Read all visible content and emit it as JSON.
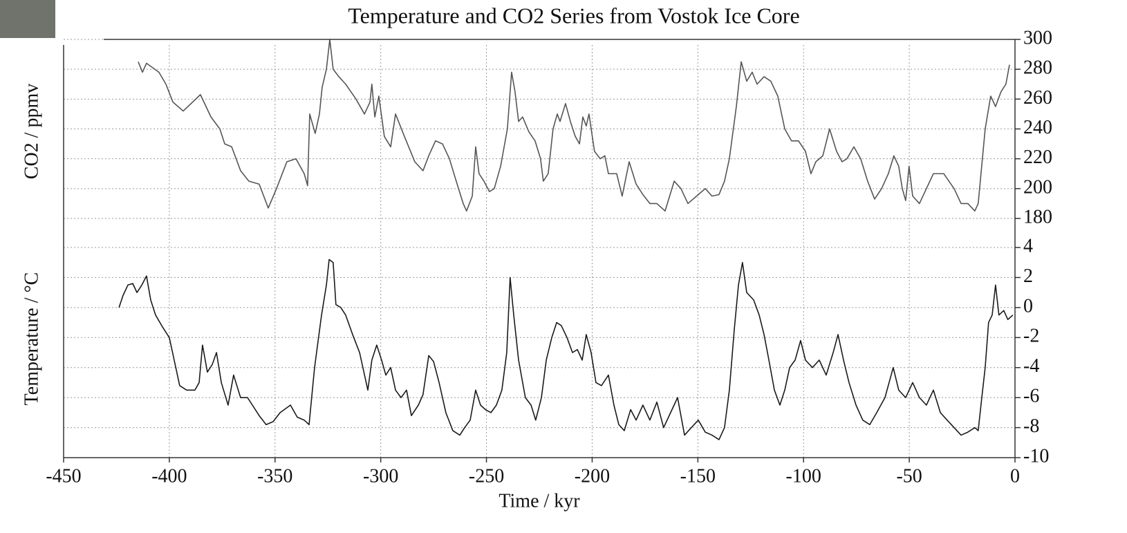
{
  "chart_data": [
    {
      "type": "line",
      "title": "Temperature and CO2 Series from Vostok Ice Core",
      "ylabel": "CO2 / ppmv",
      "color": "#555555",
      "xlim": [
        -450,
        0
      ],
      "ylim": [
        180,
        300
      ],
      "yticks": [
        180,
        200,
        220,
        240,
        260,
        280,
        300
      ],
      "grid": true,
      "x": [
        -414.7,
        -412.7,
        -410.8,
        -404.9,
        -401.6,
        -398.3,
        -393.4,
        -385.3,
        -380.3,
        -376.1,
        -373.8,
        -370.5,
        -366.3,
        -362.4,
        -357.5,
        -353.2,
        -349.3,
        -344.4,
        -340.1,
        -336.2,
        -334.6,
        -333.6,
        -331.0,
        -329.0,
        -327.7,
        -325.7,
        -324.1,
        -322.5,
        -319.8,
        -316.6,
        -311.7,
        -307.7,
        -305.1,
        -304.2,
        -302.8,
        -300.9,
        -298.3,
        -295.3,
        -293.0,
        -288.8,
        -283.9,
        -280.0,
        -277.3,
        -274.1,
        -270.8,
        -267.5,
        -264.3,
        -261.0,
        -259.4,
        -256.7,
        -255.1,
        -253.5,
        -251.2,
        -248.6,
        -246.3,
        -243.3,
        -240.1,
        -238.1,
        -236.5,
        -234.8,
        -232.9,
        -229.9,
        -227.0,
        -224.4,
        -223.1,
        -220.8,
        -218.5,
        -216.5,
        -215.2,
        -212.6,
        -210.3,
        -208.0,
        -206.0,
        -204.4,
        -202.8,
        -201.5,
        -198.9,
        -196.2,
        -194.0,
        -192.3,
        -190.0,
        -188.4,
        -185.8,
        -182.5,
        -179.2,
        -176.0,
        -172.7,
        -169.4,
        -165.5,
        -161.2,
        -158.0,
        -154.7,
        -149.8,
        -146.5,
        -143.3,
        -140.0,
        -137.4,
        -135.1,
        -131.8,
        -129.5,
        -126.9,
        -124.3,
        -122.0,
        -118.7,
        -115.5,
        -112.2,
        -108.9,
        -105.7,
        -102.4,
        -99.1,
        -96.5,
        -94.2,
        -90.9,
        -87.7,
        -84.4,
        -81.8,
        -79.5,
        -76.2,
        -73.0,
        -69.7,
        -66.4,
        -63.1,
        -59.9,
        -57.3,
        -55.0,
        -53.3,
        -51.7,
        -50.1,
        -48.4,
        -45.2,
        -41.9,
        -38.6,
        -33.7,
        -28.8,
        -25.5,
        -22.3,
        -19.0,
        -17.4,
        -14.1,
        -11.5,
        -9.2,
        -6.6,
        -4.3,
        -2.6
      ],
      "values": [
        285,
        278,
        284,
        278,
        270,
        258,
        252,
        263,
        248,
        240,
        230,
        228,
        212,
        205,
        203,
        187,
        200,
        218,
        220,
        210,
        202,
        250,
        237,
        250,
        268,
        280,
        300,
        280,
        275,
        270,
        260,
        250,
        258,
        270,
        248,
        262,
        235,
        228,
        250,
        235,
        218,
        212,
        222,
        232,
        230,
        220,
        205,
        190,
        185,
        195,
        228,
        210,
        205,
        198,
        200,
        215,
        240,
        278,
        265,
        245,
        248,
        238,
        232,
        220,
        205,
        210,
        240,
        250,
        245,
        257,
        245,
        235,
        230,
        248,
        242,
        250,
        225,
        220,
        222,
        210,
        210,
        210,
        195,
        218,
        203,
        196,
        190,
        190,
        185,
        205,
        200,
        190,
        196,
        200,
        195,
        196,
        205,
        220,
        255,
        285,
        272,
        278,
        270,
        275,
        272,
        262,
        240,
        232,
        232,
        225,
        210,
        218,
        222,
        240,
        225,
        218,
        220,
        228,
        220,
        205,
        193,
        200,
        210,
        222,
        215,
        200,
        192,
        215,
        195,
        190,
        200,
        210,
        210,
        200,
        190,
        190,
        185,
        190,
        240,
        262,
        255,
        265,
        270,
        283
      ]
    },
    {
      "type": "line",
      "xlabel": "Time / kyr",
      "ylabel": "Temperature / °C",
      "color": "#1a1a1a",
      "xlim": [
        -450,
        0
      ],
      "xticks": [
        -450,
        -400,
        -350,
        -300,
        -250,
        -200,
        -150,
        -100,
        -50,
        0
      ],
      "ylim": [
        -10,
        4
      ],
      "yticks": [
        -10,
        -8,
        -6,
        -4,
        -2,
        0,
        2,
        4
      ],
      "grid": true,
      "x": [
        -423.8,
        -421.9,
        -419.6,
        -417.3,
        -415.3,
        -413.0,
        -410.8,
        -408.8,
        -406.5,
        -403.2,
        -400.0,
        -397.7,
        -395.1,
        -391.8,
        -387.9,
        -385.9,
        -384.3,
        -382.0,
        -379.7,
        -377.7,
        -375.4,
        -372.2,
        -369.6,
        -366.3,
        -363.0,
        -360.7,
        -357.5,
        -354.2,
        -350.9,
        -347.6,
        -342.7,
        -339.5,
        -336.2,
        -333.9,
        -331.3,
        -328.0,
        -325.7,
        -324.4,
        -322.5,
        -321.2,
        -318.9,
        -316.6,
        -313.3,
        -310.0,
        -306.1,
        -304.2,
        -301.9,
        -299.6,
        -297.6,
        -295.3,
        -293.0,
        -290.4,
        -287.8,
        -285.5,
        -282.2,
        -280.0,
        -277.3,
        -275.0,
        -272.4,
        -269.2,
        -265.9,
        -262.6,
        -260.3,
        -257.7,
        -255.1,
        -252.8,
        -250.5,
        -247.9,
        -245.3,
        -242.7,
        -240.4,
        -238.8,
        -237.1,
        -234.8,
        -231.6,
        -228.9,
        -226.7,
        -224.0,
        -221.7,
        -219.1,
        -216.8,
        -214.6,
        -211.9,
        -209.3,
        -207.0,
        -204.7,
        -202.8,
        -200.5,
        -198.2,
        -195.6,
        -192.3,
        -189.7,
        -187.4,
        -184.8,
        -181.8,
        -179.2,
        -176.0,
        -172.7,
        -169.4,
        -166.2,
        -162.9,
        -159.6,
        -156.3,
        -153.1,
        -149.8,
        -146.5,
        -143.3,
        -140.0,
        -137.4,
        -135.1,
        -132.8,
        -130.8,
        -128.9,
        -126.9,
        -123.6,
        -121.0,
        -118.7,
        -116.4,
        -113.8,
        -111.2,
        -108.9,
        -106.6,
        -104.0,
        -101.4,
        -99.1,
        -95.8,
        -92.6,
        -89.3,
        -86.0,
        -83.7,
        -81.1,
        -78.5,
        -75.2,
        -72.0,
        -68.7,
        -65.4,
        -61.5,
        -57.6,
        -55.0,
        -51.7,
        -48.4,
        -45.2,
        -41.9,
        -38.6,
        -35.3,
        -32.1,
        -28.8,
        -25.5,
        -22.3,
        -19.0,
        -17.4,
        -15.7,
        -14.1,
        -12.5,
        -10.8,
        -9.2,
        -7.6,
        -5.3,
        -3.4,
        -1.0
      ],
      "values": [
        0,
        0.8,
        1.5,
        1.6,
        1.0,
        1.5,
        2.1,
        0.5,
        -0.5,
        -1.3,
        -2.0,
        -3.5,
        -5.2,
        -5.5,
        -5.5,
        -5.0,
        -2.5,
        -4.3,
        -3.8,
        -3.0,
        -5.0,
        -6.5,
        -4.5,
        -6.0,
        -6.0,
        -6.5,
        -7.2,
        -7.8,
        -7.6,
        -7.0,
        -6.5,
        -7.3,
        -7.5,
        -7.8,
        -4.0,
        -0.5,
        1.5,
        3.2,
        3.0,
        0.2,
        0.0,
        -0.5,
        -1.8,
        -3.0,
        -5.5,
        -3.5,
        -2.5,
        -3.5,
        -4.5,
        -4.0,
        -5.5,
        -6.0,
        -5.5,
        -7.2,
        -6.5,
        -5.8,
        -3.2,
        -3.6,
        -5.0,
        -7.0,
        -8.2,
        -8.5,
        -8.0,
        -7.5,
        -5.5,
        -6.5,
        -6.8,
        -7.0,
        -6.5,
        -5.5,
        -3.0,
        2.0,
        -0.5,
        -3.5,
        -6.0,
        -6.5,
        -7.5,
        -6.0,
        -3.5,
        -2.0,
        -1.0,
        -1.2,
        -2.0,
        -3.0,
        -2.8,
        -3.5,
        -1.8,
        -3.0,
        -5.0,
        -5.2,
        -4.5,
        -6.5,
        -7.8,
        -8.2,
        -6.8,
        -7.5,
        -6.5,
        -7.5,
        -6.3,
        -8.0,
        -7.0,
        -6.0,
        -8.5,
        -8.0,
        -7.5,
        -8.3,
        -8.5,
        -8.8,
        -8.0,
        -5.5,
        -1.5,
        1.5,
        3.0,
        1.0,
        0.5,
        -0.5,
        -1.8,
        -3.5,
        -5.5,
        -6.5,
        -5.5,
        -4.0,
        -3.5,
        -2.2,
        -3.5,
        -4.0,
        -3.5,
        -4.5,
        -3.0,
        -1.8,
        -3.5,
        -5.0,
        -6.5,
        -7.5,
        -7.8,
        -7.0,
        -6.0,
        -4.0,
        -5.5,
        -6.0,
        -5.0,
        -6.0,
        -6.5,
        -5.5,
        -7.0,
        -7.5,
        -8.0,
        -8.5,
        -8.3,
        -8.0,
        -8.2,
        -6.0,
        -4.0,
        -1.0,
        -0.5,
        1.5,
        -0.5,
        -0.2,
        -0.8,
        -0.5
      ]
    }
  ]
}
